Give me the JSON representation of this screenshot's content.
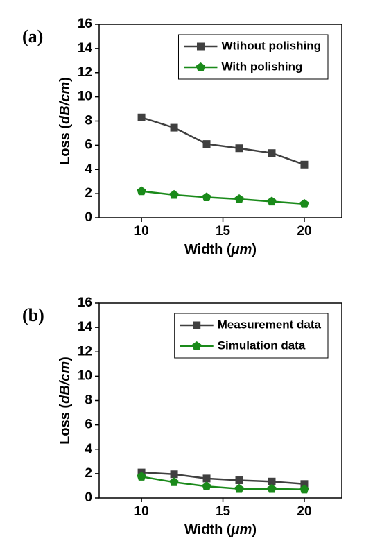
{
  "chart_data": [
    {
      "type": "line",
      "panel_label": "(a)",
      "xlabel": [
        "Width (",
        "μm",
        ")"
      ],
      "ylabel": [
        "Loss (",
        "dB/cm",
        ")"
      ],
      "x": [
        10,
        12,
        14,
        16,
        18,
        20
      ],
      "series": [
        {
          "name": "Wtihout polishing",
          "color": "#404040",
          "marker": "square",
          "values": [
            8.3,
            7.45,
            6.1,
            5.75,
            5.35,
            4.4
          ]
        },
        {
          "name": "With polishing",
          "color": "#1a8a1a",
          "marker": "pentagon",
          "values": [
            2.2,
            1.9,
            1.7,
            1.55,
            1.35,
            1.15
          ]
        }
      ],
      "xlim": [
        7.4,
        22.3
      ],
      "xticks": [
        10,
        15,
        20
      ],
      "ylim": [
        0,
        16
      ],
      "yticks": [
        0,
        2,
        4,
        6,
        8,
        10,
        12,
        14,
        16
      ],
      "legend": "upper right"
    },
    {
      "type": "line",
      "panel_label": "(b)",
      "xlabel": [
        "Width (",
        "μm",
        ")"
      ],
      "ylabel": [
        "Loss (",
        "dB/cm",
        ")"
      ],
      "x": [
        10,
        12,
        14,
        16,
        18,
        20
      ],
      "series": [
        {
          "name": "Measurement data",
          "color": "#404040",
          "marker": "square",
          "values": [
            2.1,
            1.95,
            1.6,
            1.45,
            1.35,
            1.15
          ]
        },
        {
          "name": "Simulation data",
          "color": "#1a8a1a",
          "marker": "pentagon",
          "values": [
            1.75,
            1.3,
            0.95,
            0.75,
            0.75,
            0.7
          ]
        }
      ],
      "xlim": [
        7.4,
        22.3
      ],
      "xticks": [
        10,
        15,
        20
      ],
      "ylim": [
        0,
        16
      ],
      "yticks": [
        0,
        2,
        4,
        6,
        8,
        10,
        12,
        14,
        16
      ],
      "legend": "upper right"
    }
  ]
}
